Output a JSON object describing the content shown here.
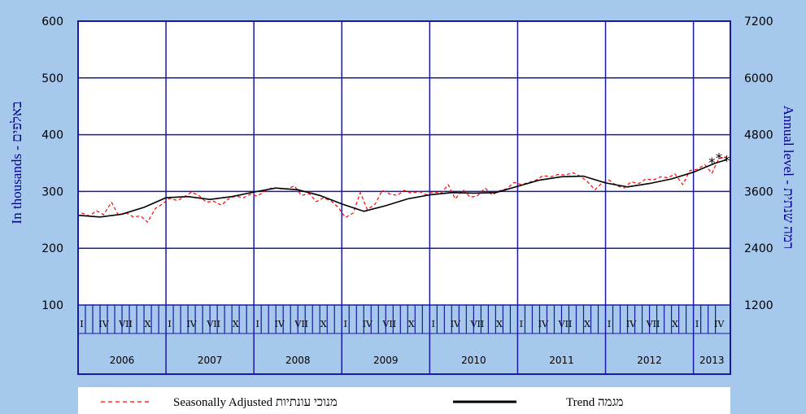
{
  "chart_data": {
    "type": "line",
    "title": "",
    "xlabel": "",
    "ylabel": "In thousands - באלפים",
    "ylabel_right": "Annual level - רמה שנתית",
    "ylim": [
      100,
      600
    ],
    "ylim_right": [
      1200,
      7200
    ],
    "yticks": [
      100,
      200,
      300,
      400,
      500,
      600
    ],
    "yticks_right": [
      1200,
      2400,
      3600,
      4800,
      6000,
      7200
    ],
    "x_start": 2006.0,
    "x_end": 2013.42,
    "years": [
      "2006",
      "2007",
      "2008",
      "2009",
      "2010",
      "2011",
      "2012",
      "2013"
    ],
    "quarter_labels": [
      "I",
      "IV",
      "VII",
      "X"
    ],
    "grid": true,
    "legend_position": "bottom",
    "series": [
      {
        "name": "Seasonally Adjusted מנוכי עונתיות",
        "color": "#ff0000",
        "style": "dashed",
        "x": [
          2006.04,
          2006.13,
          2006.21,
          2006.29,
          2006.38,
          2006.46,
          2006.54,
          2006.63,
          2006.71,
          2006.79,
          2006.88,
          2006.96,
          2007.04,
          2007.13,
          2007.21,
          2007.29,
          2007.38,
          2007.46,
          2007.54,
          2007.63,
          2007.71,
          2007.79,
          2007.88,
          2007.96,
          2008.04,
          2008.13,
          2008.21,
          2008.29,
          2008.38,
          2008.46,
          2008.54,
          2008.63,
          2008.71,
          2008.79,
          2008.88,
          2008.96,
          2009.04,
          2009.13,
          2009.21,
          2009.29,
          2009.38,
          2009.46,
          2009.54,
          2009.63,
          2009.71,
          2009.79,
          2009.88,
          2009.96,
          2010.04,
          2010.13,
          2010.21,
          2010.29,
          2010.38,
          2010.46,
          2010.54,
          2010.63,
          2010.71,
          2010.79,
          2010.88,
          2010.96,
          2011.04,
          2011.13,
          2011.21,
          2011.29,
          2011.38,
          2011.46,
          2011.54,
          2011.63,
          2011.71,
          2011.79,
          2011.88,
          2011.96,
          2012.04,
          2012.13,
          2012.21,
          2012.29,
          2012.38,
          2012.46,
          2012.54,
          2012.63,
          2012.71,
          2012.79,
          2012.88,
          2012.96,
          2013.04,
          2013.13,
          2013.21,
          2013.29,
          2013.38
        ],
        "y": [
          262,
          257,
          266,
          259,
          281,
          258,
          263,
          255,
          257,
          246,
          270,
          278,
          288,
          284,
          291,
          299,
          292,
          281,
          283,
          276,
          287,
          292,
          289,
          295,
          292,
          301,
          307,
          305,
          304,
          310,
          293,
          296,
          282,
          289,
          283,
          272,
          254,
          262,
          298,
          268,
          278,
          302,
          296,
          293,
          302,
          297,
          300,
          294,
          299,
          297,
          312,
          287,
          303,
          290,
          292,
          306,
          294,
          301,
          305,
          316,
          312,
          316,
          320,
          328,
          326,
          330,
          329,
          333,
          327,
          318,
          303,
          315,
          320,
          310,
          306,
          317,
          314,
          322,
          320,
          326,
          324,
          331,
          312,
          337,
          339,
          347,
          332,
          358,
          361
        ]
      },
      {
        "name": "Trend מגמה",
        "color": "#000000",
        "style": "solid",
        "x": [
          2006.0,
          2006.25,
          2006.5,
          2006.75,
          2007.0,
          2007.25,
          2007.5,
          2007.75,
          2008.0,
          2008.25,
          2008.5,
          2008.75,
          2009.0,
          2009.25,
          2009.5,
          2009.75,
          2010.0,
          2010.25,
          2010.5,
          2010.75,
          2011.0,
          2011.25,
          2011.5,
          2011.75,
          2012.0,
          2012.25,
          2012.5,
          2012.75,
          2013.0,
          2013.25,
          2013.38
        ],
        "y": [
          258,
          255,
          260,
          272,
          289,
          291,
          286,
          291,
          299,
          306,
          303,
          293,
          278,
          265,
          275,
          287,
          294,
          298,
          297,
          298,
          309,
          320,
          326,
          327,
          315,
          308,
          314,
          322,
          334,
          350,
          356
        ]
      }
    ],
    "markers": {
      "symbol": "*",
      "x": [
        2013.21,
        2013.29,
        2013.38
      ],
      "y": [
        352,
        360,
        356
      ]
    }
  }
}
